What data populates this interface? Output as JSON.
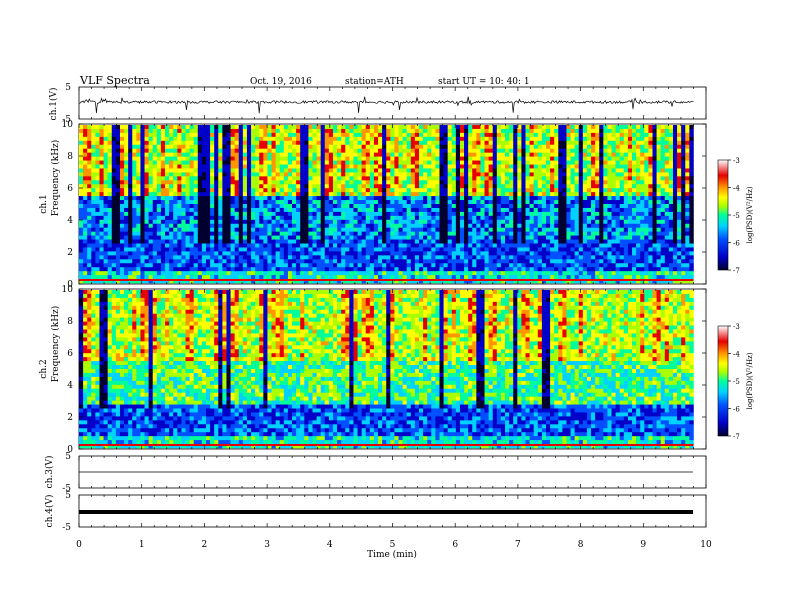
{
  "header": {
    "title": "VLF  Spectra",
    "date": "Oct. 19, 2016",
    "station": "station=ATH",
    "start": "start  UT  =   10: 40: 1"
  },
  "colors": {
    "frame": "#000000",
    "background": "#ffffff",
    "spectrogram_scale": [
      "#000030",
      "#0000c8",
      "#0050ff",
      "#00d2ff",
      "#00ff9a",
      "#aaff00",
      "#ffff00",
      "#ff9600",
      "#e60000",
      "#ffffff"
    ]
  },
  "chart_data": [
    {
      "type": "line",
      "channel": "ch.1",
      "ylabel": "ch.1(V)",
      "ylim": [
        -5,
        5
      ],
      "yticks": [
        "5",
        "-5"
      ],
      "xlim": [
        0,
        10
      ],
      "description_of_signal": "noisy waveform near 0 V with short spikes",
      "baseline": 0.3,
      "spike_range": [
        -3.2,
        2.0
      ]
    },
    {
      "type": "heatmap",
      "channel": "ch.1",
      "ylabel": "Frequency  (kHz)",
      "channel_label": "ch.1",
      "ylim": [
        0,
        10
      ],
      "yticks": [
        "0",
        "2",
        "4",
        "6",
        "8",
        "10"
      ],
      "xlim": [
        0,
        9.8
      ],
      "colorbar": {
        "label": "log(PSD)(V²/Hz)",
        "ticks": [
          "-3",
          "-4",
          "-5",
          "-6",
          "-7"
        ],
        "range": [
          -7,
          -3
        ]
      }
    },
    {
      "type": "heatmap",
      "channel": "ch.2",
      "ylabel": "Frequency  (kHz)",
      "channel_label": "ch.2",
      "ylim": [
        0,
        10
      ],
      "yticks": [
        "0",
        "2",
        "4",
        "6",
        "8",
        "10"
      ],
      "xlim": [
        0,
        9.8
      ],
      "colorbar": {
        "label": "log(PSD)(V²/Hz)",
        "ticks": [
          "-3",
          "-4",
          "-5",
          "-6",
          "-7"
        ],
        "range": [
          -7,
          -3
        ]
      }
    },
    {
      "type": "line",
      "channel": "ch.3",
      "ylabel": "ch.3(V)",
      "ylim": [
        -5,
        5
      ],
      "yticks": [
        "5",
        "-5"
      ],
      "xlim": [
        0,
        9.8
      ],
      "constant_value": 0
    },
    {
      "type": "line",
      "channel": "ch.4",
      "ylabel": "ch.4(V)",
      "ylim": [
        -5,
        5
      ],
      "yticks": [
        "5",
        "-5"
      ],
      "xlim": [
        0,
        9.8
      ],
      "constant_value": -0.2
    }
  ],
  "xaxis": {
    "label": "Time  (min)",
    "ticks": [
      "0",
      "1",
      "2",
      "3",
      "4",
      "5",
      "6",
      "7",
      "8",
      "9",
      "10"
    ],
    "xlim": [
      0,
      10
    ]
  }
}
